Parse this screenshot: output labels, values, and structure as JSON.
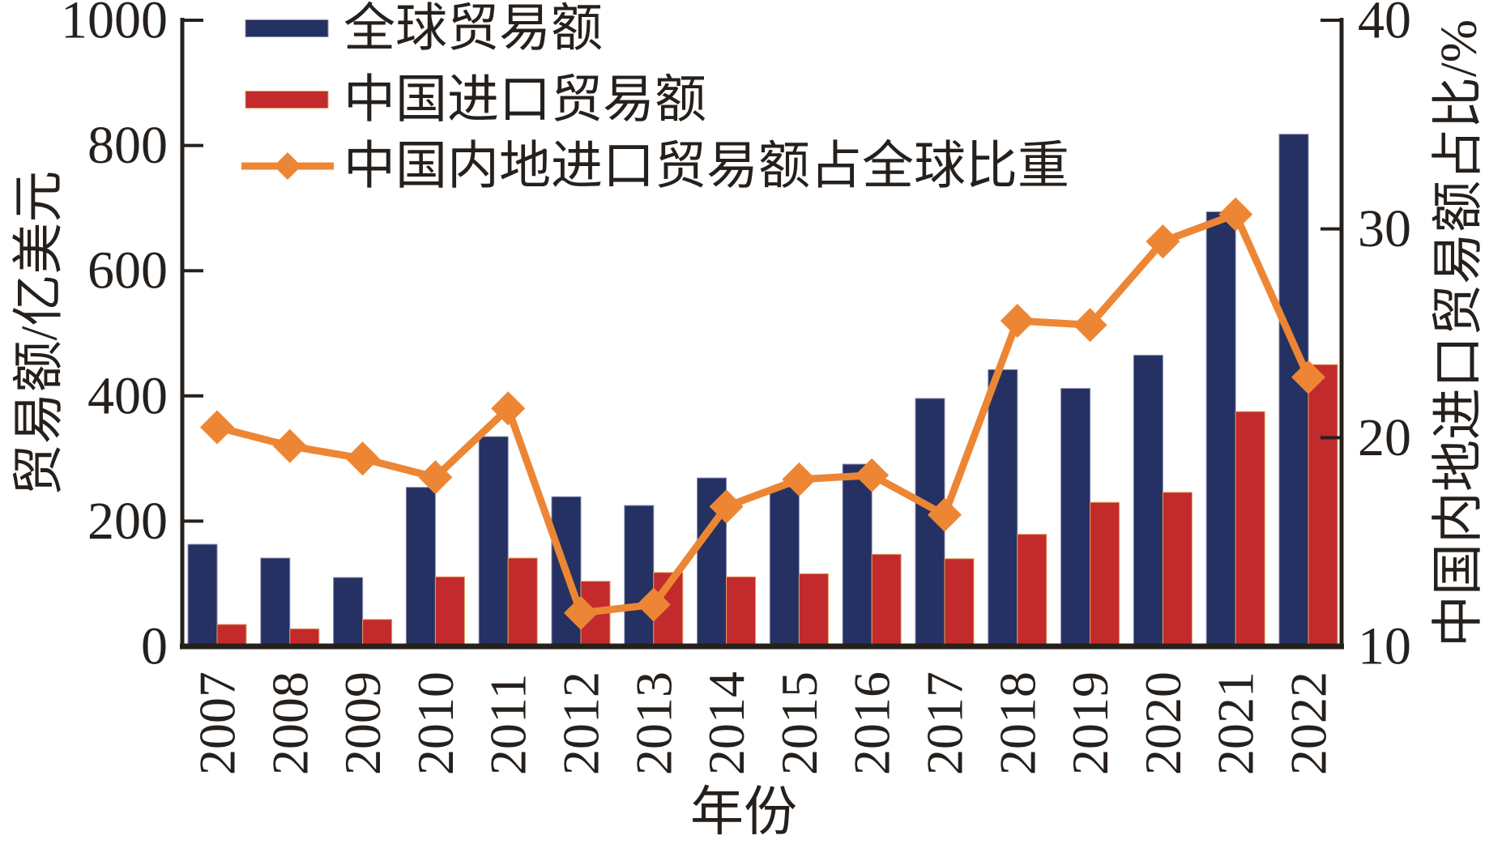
{
  "figure": {
    "background": "#ffffff",
    "axis_color": "#26201c"
  },
  "legend": {
    "items": [
      {
        "label": "全球贸易额",
        "type": "bar-swatch",
        "color": "#243162"
      },
      {
        "label": "中国进口贸易额",
        "type": "bar-swatch",
        "color": "#c22a2c"
      },
      {
        "label": "中国内地进口贸易额占全球比重",
        "type": "line-diamond",
        "color": "#ed8634"
      }
    ]
  },
  "axes": {
    "left": {
      "title": "贸易额/亿美元",
      "range": [
        0,
        1000
      ],
      "ticks": [
        0,
        200,
        400,
        600,
        800,
        1000
      ],
      "tick_labels": [
        "0",
        "200",
        "400",
        "600",
        "800",
        "1000"
      ]
    },
    "right": {
      "title": "中国内地进口贸易额占比/%",
      "range": [
        10,
        40
      ],
      "ticks": [
        10,
        20,
        30,
        40
      ],
      "tick_labels": [
        "10",
        "20",
        "30",
        "40"
      ]
    },
    "x": {
      "title": "年份",
      "tick_labels": [
        "2007",
        "2008",
        "2009",
        "2010",
        "2011",
        "2012",
        "2013",
        "2014",
        "2015",
        "2016",
        "2017",
        "2018",
        "2019",
        "2020",
        "2021",
        "2022"
      ]
    }
  },
  "chart_data": {
    "type": "bar",
    "subtype": "grouped-bars-with-line-overlay",
    "categories": [
      "2007",
      "2008",
      "2009",
      "2010",
      "2011",
      "2012",
      "2013",
      "2014",
      "2015",
      "2016",
      "2017",
      "2018",
      "2019",
      "2020",
      "2021",
      "2022"
    ],
    "series": [
      {
        "name": "全球贸易额",
        "type": "bar",
        "axis": "left",
        "color": "#243162",
        "values": [
          163,
          141,
          110,
          254,
          335,
          239,
          225,
          269,
          255,
          291,
          396,
          442,
          412,
          465,
          694,
          818
        ]
      },
      {
        "name": "中国进口贸易额",
        "type": "bar",
        "axis": "left",
        "color": "#c22a2c",
        "values": [
          35,
          28,
          43,
          111,
          141,
          104,
          118,
          111,
          116,
          147,
          140,
          179,
          230,
          246,
          375,
          450
        ]
      },
      {
        "name": "中国内地进口贸易额占全球比重",
        "type": "line",
        "marker": "diamond",
        "axis": "right",
        "color": "#ed8634",
        "values": [
          20.5,
          19.6,
          19.0,
          18.1,
          21.4,
          11.6,
          12.0,
          16.7,
          18.0,
          18.2,
          16.3,
          25.6,
          25.4,
          29.4,
          30.7,
          22.9
        ]
      }
    ],
    "xlabel": "年份",
    "ylabel_left": "贸易额/亿美元",
    "ylabel_right": "中国内地进口贸易额占比/%",
    "ylim_left": [
      0,
      1000
    ],
    "ylim_right": [
      10,
      40
    ],
    "grid": false,
    "legend_position": "top-left-inside"
  }
}
